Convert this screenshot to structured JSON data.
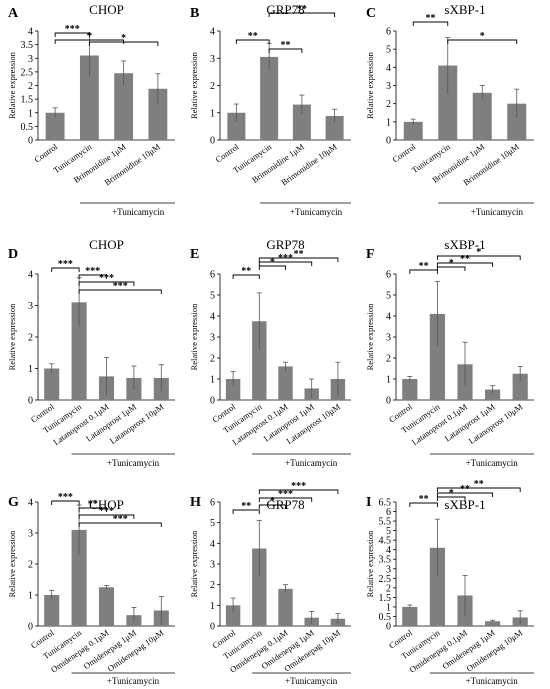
{
  "figure": {
    "accent": "#7f7f7f",
    "axis_color": "#000000"
  },
  "chart_data": [
    {
      "panel": "A",
      "type": "bar",
      "title": "CHOP",
      "ylabel": "Relative expression",
      "ylim": [
        0,
        4
      ],
      "yticks": [
        0,
        0.5,
        1,
        1.5,
        2,
        2.5,
        3,
        3.5,
        4
      ],
      "categories": [
        "Control",
        "Tunicamycin",
        "Brimonidine 1μM",
        "Brimonidine 10μM"
      ],
      "values": [
        1.0,
        3.1,
        2.45,
        1.88
      ],
      "errors": [
        0.18,
        0.78,
        0.45,
        0.55
      ],
      "group_label": "+Tunicamycin",
      "significance": [
        {
          "from": 0,
          "to": 1,
          "label": "***"
        },
        {
          "from": 0,
          "to": 2,
          "label": "*"
        },
        {
          "from": 1,
          "to": 3,
          "label": "*"
        }
      ]
    },
    {
      "panel": "B",
      "type": "bar",
      "title": "GRP78",
      "ylabel": "Relative expression",
      "ylim": [
        0,
        4
      ],
      "yticks": [
        0,
        1,
        2,
        3,
        4
      ],
      "categories": [
        "Control",
        "Tunicamycin",
        "Brimonidine 1μM",
        "Brimonidine 10μM"
      ],
      "values": [
        1.0,
        3.05,
        1.3,
        0.88
      ],
      "errors": [
        0.32,
        0.5,
        0.35,
        0.25
      ],
      "group_label": "+Tunicamycin",
      "significance": [
        {
          "from": 0,
          "to": 1,
          "label": "**"
        },
        {
          "from": 1,
          "to": 2,
          "label": "**"
        },
        {
          "from": 1,
          "to": 3,
          "label": "**"
        }
      ]
    },
    {
      "panel": "C",
      "type": "bar",
      "title": "sXBP-1",
      "ylabel": "Relative expression",
      "ylim": [
        0,
        6
      ],
      "yticks": [
        0,
        1,
        2,
        3,
        4,
        5,
        6
      ],
      "categories": [
        "Control",
        "Tunicamycin",
        "Brimonidine 1μM",
        "Brimonidine 10μM"
      ],
      "values": [
        1.0,
        4.1,
        2.6,
        2.0
      ],
      "errors": [
        0.15,
        1.55,
        0.4,
        0.8
      ],
      "group_label": "+Tunicamycin",
      "significance": [
        {
          "from": 0,
          "to": 1,
          "label": "**"
        },
        {
          "from": 1,
          "to": 3,
          "label": "*"
        }
      ]
    },
    {
      "panel": "D",
      "type": "bar",
      "title": "CHOP",
      "ylabel": "Relative expression",
      "ylim": [
        0,
        4
      ],
      "yticks": [
        0,
        1,
        2,
        3,
        4
      ],
      "categories": [
        "Control",
        "Tunicamycin",
        "Latanoprost 0.1μM",
        "Latanoprost 1μM",
        "Latanoprost 10μM"
      ],
      "values": [
        1.0,
        3.1,
        0.75,
        0.7,
        0.7
      ],
      "errors": [
        0.15,
        0.78,
        0.6,
        0.38,
        0.42
      ],
      "group_label": "+Tunicamycin",
      "significance": [
        {
          "from": 0,
          "to": 1,
          "label": "***"
        },
        {
          "from": 1,
          "to": 2,
          "label": "***"
        },
        {
          "from": 1,
          "to": 3,
          "label": "***"
        },
        {
          "from": 1,
          "to": 4,
          "label": "***"
        }
      ]
    },
    {
      "panel": "E",
      "type": "bar",
      "title": "GRP78",
      "ylabel": "Relative expression",
      "ylim": [
        0,
        6
      ],
      "yticks": [
        0,
        1,
        2,
        3,
        4,
        5,
        6
      ],
      "categories": [
        "Control",
        "Tunicamycin",
        "Latanoprost 0.1μM",
        "Latanoprost 1μM",
        "Latanoprost 10μM"
      ],
      "values": [
        1.0,
        3.75,
        1.6,
        0.55,
        1.0
      ],
      "errors": [
        0.35,
        1.35,
        0.2,
        0.45,
        0.8
      ],
      "group_label": "+Tunicamycin",
      "significance": [
        {
          "from": 0,
          "to": 1,
          "label": "**"
        },
        {
          "from": 1,
          "to": 2,
          "label": "*"
        },
        {
          "from": 1,
          "to": 3,
          "label": "***"
        },
        {
          "from": 1,
          "to": 4,
          "label": "**"
        }
      ]
    },
    {
      "panel": "F",
      "type": "bar",
      "title": "sXBP-1",
      "ylabel": "Relative expression",
      "ylim": [
        0,
        6
      ],
      "yticks": [
        0,
        1,
        2,
        3,
        4,
        5,
        6
      ],
      "categories": [
        "Control",
        "Tunicamycin",
        "Latanoprost 0.1μM",
        "Latanoprost 1μM",
        "Latanoprost 10μM"
      ],
      "values": [
        1.0,
        4.1,
        1.7,
        0.5,
        1.25
      ],
      "errors": [
        0.12,
        1.55,
        1.05,
        0.18,
        0.35
      ],
      "group_label": "+Tunicamycin",
      "significance": [
        {
          "from": 0,
          "to": 1,
          "label": "**"
        },
        {
          "from": 1,
          "to": 2,
          "label": "*"
        },
        {
          "from": 1,
          "to": 3,
          "label": "**"
        },
        {
          "from": 1,
          "to": 4,
          "label": "*"
        }
      ]
    },
    {
      "panel": "G",
      "type": "bar",
      "title": "CHOP",
      "ylabel": "Relative expression",
      "ylim": [
        0,
        4
      ],
      "yticks": [
        0,
        1,
        2,
        3,
        4
      ],
      "categories": [
        "Control",
        "Tunicamycin",
        "Omidenepag 0.1μM",
        "Omidenepag 1μM",
        "Omidenepag 10μM"
      ],
      "values": [
        1.0,
        3.1,
        1.25,
        0.35,
        0.5
      ],
      "errors": [
        0.15,
        0.8,
        0.06,
        0.25,
        0.45
      ],
      "group_label": "+Tunicamycin",
      "significance": [
        {
          "from": 0,
          "to": 1,
          "label": "***"
        },
        {
          "from": 1,
          "to": 2,
          "label": "**"
        },
        {
          "from": 1,
          "to": 3,
          "label": "***"
        },
        {
          "from": 1,
          "to": 4,
          "label": "***"
        }
      ]
    },
    {
      "panel": "H",
      "type": "bar",
      "title": "GRP78",
      "ylabel": "Relative expression",
      "ylim": [
        0,
        6
      ],
      "yticks": [
        0,
        1,
        2,
        3,
        4,
        5,
        6
      ],
      "categories": [
        "Control",
        "Tunicamycin",
        "Omidenepag 0.1μM",
        "Omidenepag 1μM",
        "Omidenepag 10μM"
      ],
      "values": [
        1.0,
        3.75,
        1.8,
        0.4,
        0.35
      ],
      "errors": [
        0.35,
        1.35,
        0.2,
        0.3,
        0.25
      ],
      "group_label": "+Tunicamycin",
      "significance": [
        {
          "from": 0,
          "to": 1,
          "label": "**"
        },
        {
          "from": 1,
          "to": 2,
          "label": "*"
        },
        {
          "from": 1,
          "to": 3,
          "label": "***"
        },
        {
          "from": 1,
          "to": 4,
          "label": "***"
        }
      ]
    },
    {
      "panel": "I",
      "type": "bar",
      "title": "sXBP-1",
      "ylabel": "Relative expression",
      "ylim": [
        0,
        6.5
      ],
      "yticks": [
        0,
        0.5,
        1,
        1.5,
        2,
        2.5,
        3,
        3.5,
        4,
        4.5,
        5,
        5.5,
        6,
        6.5
      ],
      "categories": [
        "Control",
        "Tunicamycin",
        "Omidenepag 0.1μM",
        "Omidenepag 1μM",
        "Omidenepag 10μM"
      ],
      "values": [
        1.0,
        4.1,
        1.6,
        0.25,
        0.45
      ],
      "errors": [
        0.1,
        1.5,
        1.05,
        0.05,
        0.35
      ],
      "group_label": "+Tunicamycin",
      "significance": [
        {
          "from": 0,
          "to": 1,
          "label": "**"
        },
        {
          "from": 1,
          "to": 2,
          "label": "*"
        },
        {
          "from": 1,
          "to": 3,
          "label": "**"
        },
        {
          "from": 1,
          "to": 4,
          "label": "**"
        }
      ]
    }
  ]
}
